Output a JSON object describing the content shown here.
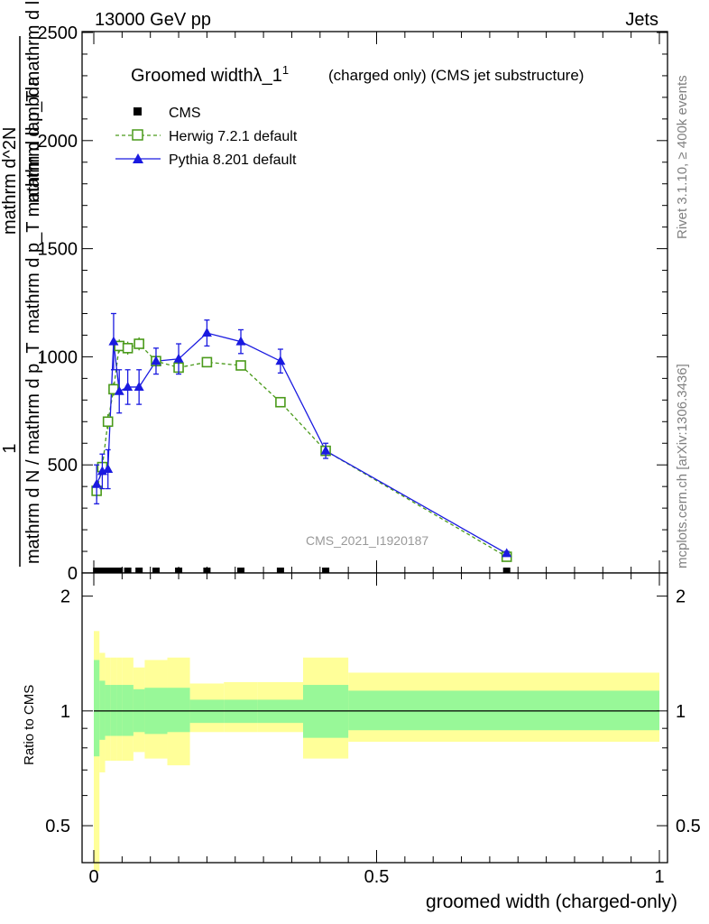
{
  "header": {
    "left": "13000 GeV pp",
    "right": "Jets"
  },
  "side_labels": {
    "rivet": "Rivet 3.1.10, ≥ 400k events",
    "mcplots": "mcplots.cern.ch [arXiv:1306.3436]"
  },
  "chart_data": [
    {
      "type": "line",
      "title": "Groomed widthλ_1",
      "title_sup": "1",
      "title_suffix": "(charged only) (CMS jet substructure)",
      "watermark": "CMS_2021_I1920187",
      "ylabel_parts": {
        "one": "1",
        "denominator": "mathrm d N / mathrm d p_T",
        "numerator": "mathrm d^2N",
        "numerator_full": "mathrm d p_T mathrm d lambda",
        "numerator_tail": "mathrm d p_T mathrm d lambda"
      },
      "ylim": [
        0,
        2500
      ],
      "yticks": [
        0,
        500,
        1000,
        1500,
        2000,
        2500
      ],
      "ytick_labels": [
        "0",
        "500",
        "1000",
        "1500",
        "2000",
        "2500"
      ],
      "xlim": [
        0,
        1
      ],
      "legend_position": "top-left",
      "series": [
        {
          "name": "CMS",
          "color": "#000000",
          "marker": "filled-square",
          "x": [
            0.005,
            0.015,
            0.025,
            0.035,
            0.045,
            0.06,
            0.08,
            0.11,
            0.15,
            0.2,
            0.26,
            0.33,
            0.41,
            0.73
          ],
          "y": [
            0,
            0,
            0,
            0,
            0,
            0,
            0,
            0,
            0,
            0,
            0,
            0,
            0,
            0
          ]
        },
        {
          "name": "Herwig 7.2.1 default",
          "color": "#4a9a1a",
          "marker": "open-square",
          "line": "dashed",
          "x": [
            0.005,
            0.015,
            0.025,
            0.035,
            0.045,
            0.06,
            0.08,
            0.11,
            0.15,
            0.2,
            0.26,
            0.33,
            0.41,
            0.73
          ],
          "y": [
            380,
            490,
            700,
            850,
            1050,
            1040,
            1060,
            980,
            950,
            975,
            960,
            790,
            565,
            75
          ],
          "err": [
            40,
            40,
            35,
            30,
            30,
            30,
            30,
            25,
            20,
            15,
            15,
            10,
            10,
            5
          ]
        },
        {
          "name": "Pythia 8.201 default",
          "color": "#1a1ae0",
          "marker": "filled-triangle",
          "line": "solid",
          "x": [
            0.005,
            0.015,
            0.025,
            0.035,
            0.045,
            0.06,
            0.08,
            0.11,
            0.15,
            0.2,
            0.26,
            0.33,
            0.41,
            0.73
          ],
          "y": [
            410,
            470,
            480,
            1070,
            840,
            860,
            860,
            980,
            990,
            1110,
            1070,
            980,
            565,
            90
          ],
          "err": [
            90,
            80,
            90,
            130,
            100,
            80,
            80,
            60,
            70,
            60,
            55,
            55,
            35,
            10
          ]
        }
      ]
    },
    {
      "type": "area",
      "ylabel": "Ratio to CMS",
      "xlabel": "groomed width (charged-only)",
      "ylim": [
        0.4,
        2.3
      ],
      "yscale": "log",
      "yticks": [
        0.5,
        1,
        2
      ],
      "ytick_labels": [
        "0.5",
        "1",
        "2"
      ],
      "xlim": [
        0,
        1
      ],
      "xticks": [
        0,
        0.5,
        1
      ],
      "xtick_labels": [
        "0",
        "0.5",
        "1"
      ],
      "reference_line": 1,
      "bands": {
        "bin_edges": [
          0,
          0.01,
          0.02,
          0.03,
          0.04,
          0.05,
          0.07,
          0.09,
          0.13,
          0.17,
          0.23,
          0.29,
          0.37,
          0.45,
          1.0
        ],
        "inner_color": "#98f898",
        "outer_color": "#ffff99",
        "inner_low": [
          0.76,
          0.84,
          0.86,
          0.86,
          0.86,
          0.86,
          0.88,
          0.87,
          0.88,
          0.93,
          0.93,
          0.93,
          0.85,
          0.89
        ],
        "inner_high": [
          1.36,
          1.2,
          1.17,
          1.17,
          1.17,
          1.17,
          1.14,
          1.15,
          1.15,
          1.07,
          1.07,
          1.07,
          1.17,
          1.13
        ],
        "outer_low": [
          0.38,
          0.69,
          0.74,
          0.74,
          0.74,
          0.74,
          0.78,
          0.75,
          0.72,
          0.88,
          0.88,
          0.88,
          0.75,
          0.83
        ],
        "outer_high": [
          1.62,
          1.42,
          1.38,
          1.38,
          1.38,
          1.38,
          1.3,
          1.36,
          1.38,
          1.18,
          1.19,
          1.19,
          1.38,
          1.26
        ]
      }
    }
  ]
}
